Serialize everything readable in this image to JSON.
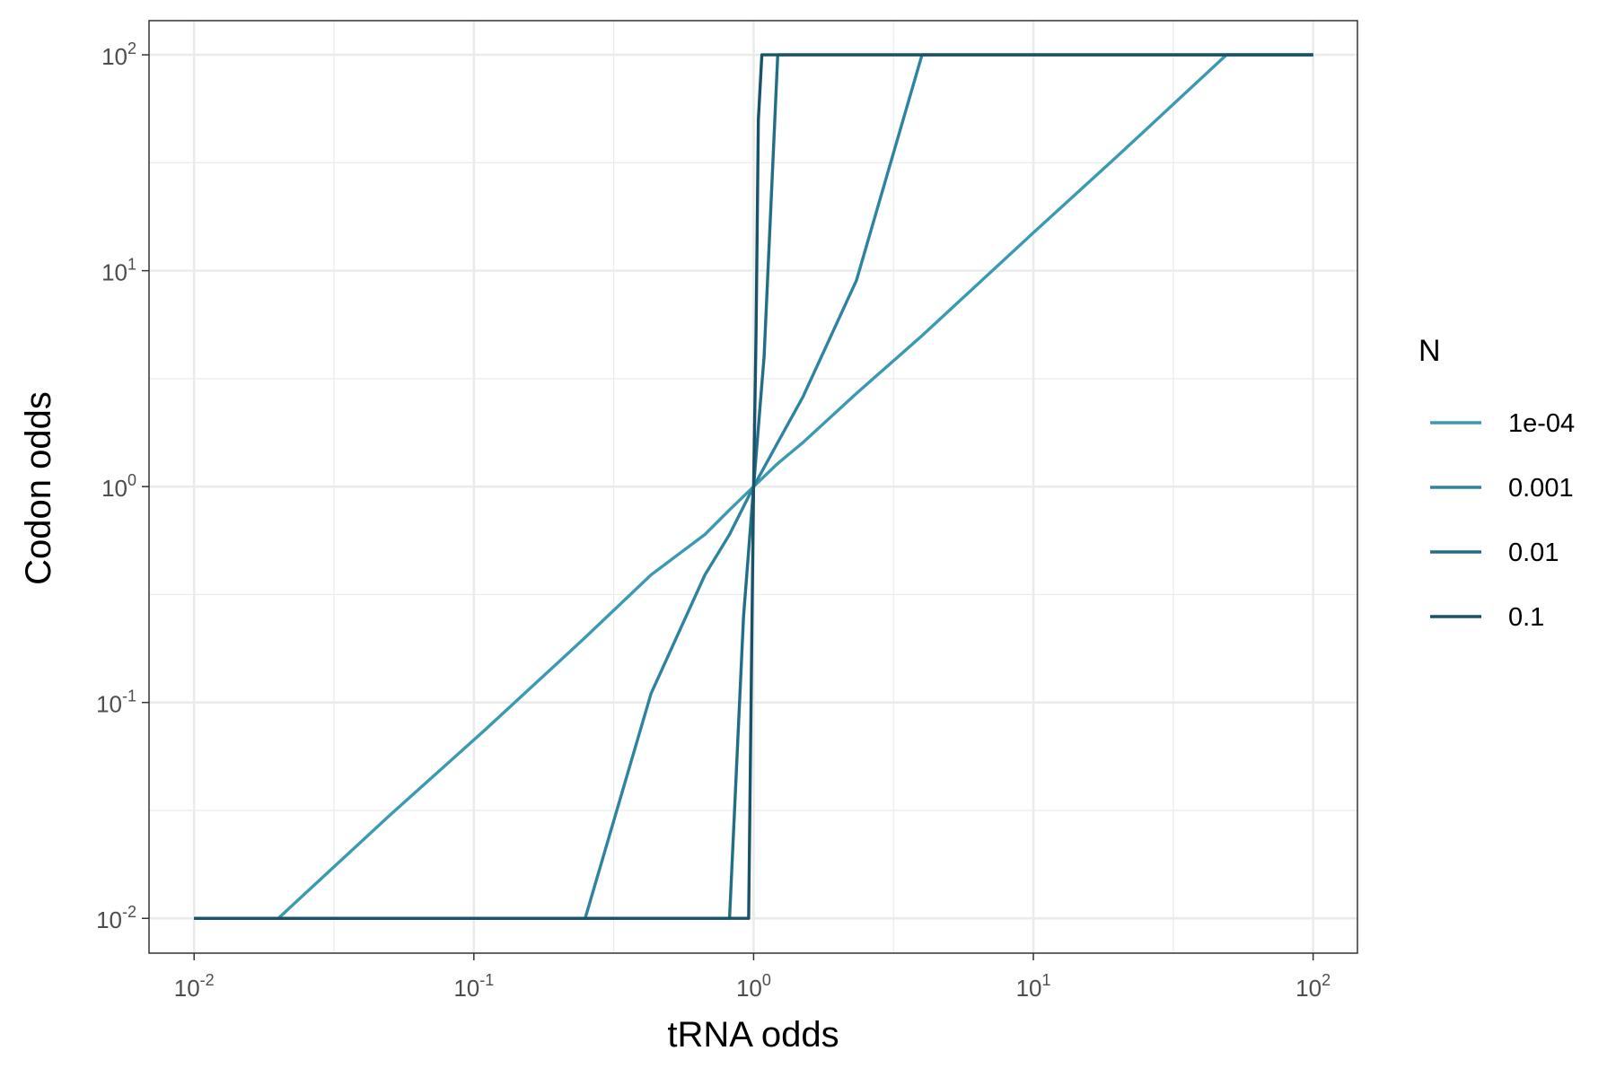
{
  "chart_data": {
    "type": "line",
    "xlabel": "tRNA odds",
    "ylabel": "Codon odds",
    "x_scale": "log10",
    "y_scale": "log10",
    "xlim": [
      0.0069,
      144
    ],
    "ylim": [
      0.0069,
      144
    ],
    "grid": true,
    "legend_position": "right",
    "legend_title": "N",
    "x_ticks": [
      {
        "base": "10",
        "exp": "-2",
        "value": 0.01
      },
      {
        "base": "10",
        "exp": "-1",
        "value": 0.1
      },
      {
        "base": "10",
        "exp": "0",
        "value": 1
      },
      {
        "base": "10",
        "exp": "1",
        "value": 10
      },
      {
        "base": "10",
        "exp": "2",
        "value": 100
      }
    ],
    "y_ticks": [
      {
        "base": "10",
        "exp": "-2",
        "value": 0.01
      },
      {
        "base": "10",
        "exp": "-1",
        "value": 0.1
      },
      {
        "base": "10",
        "exp": "0",
        "value": 1
      },
      {
        "base": "10",
        "exp": "1",
        "value": 10
      },
      {
        "base": "10",
        "exp": "2",
        "value": 100
      }
    ],
    "series": [
      {
        "name": "1e-04",
        "color": "#3b9ab2",
        "points": [
          [
            0.01,
            0.01
          ],
          [
            0.02,
            0.01
          ],
          [
            0.05,
            0.03
          ],
          [
            0.11,
            0.075
          ],
          [
            0.25,
            0.2
          ],
          [
            0.43,
            0.39
          ],
          [
            0.67,
            0.6
          ],
          [
            0.82,
            0.78
          ],
          [
            1.0,
            1.0
          ],
          [
            1.22,
            1.28
          ],
          [
            1.5,
            1.6
          ],
          [
            2.33,
            2.7
          ],
          [
            4.0,
            5.0
          ],
          [
            10,
            15
          ],
          [
            20,
            34
          ],
          [
            49,
            100
          ],
          [
            100,
            100
          ]
        ]
      },
      {
        "name": "0.001",
        "color": "#2e84a0",
        "points": [
          [
            0.01,
            0.01
          ],
          [
            0.25,
            0.01
          ],
          [
            0.43,
            0.11
          ],
          [
            0.67,
            0.39
          ],
          [
            0.82,
            0.6
          ],
          [
            1.0,
            1.0
          ],
          [
            1.22,
            1.6
          ],
          [
            1.5,
            2.6
          ],
          [
            2.33,
            9.0
          ],
          [
            4.0,
            100
          ],
          [
            100,
            100
          ]
        ]
      },
      {
        "name": "0.01",
        "color": "#236e87",
        "points": [
          [
            0.01,
            0.01
          ],
          [
            0.82,
            0.01
          ],
          [
            0.92,
            0.25
          ],
          [
            1.0,
            1.0
          ],
          [
            1.09,
            4.0
          ],
          [
            1.22,
            100
          ],
          [
            100,
            100
          ]
        ]
      },
      {
        "name": "0.1",
        "color": "#1a5269",
        "points": [
          [
            0.01,
            0.01
          ],
          [
            0.96,
            0.01
          ],
          [
            0.985,
            0.2
          ],
          [
            1.0,
            1.0
          ],
          [
            1.02,
            5.0
          ],
          [
            1.04,
            50
          ],
          [
            1.07,
            100
          ],
          [
            100,
            100
          ]
        ]
      }
    ]
  }
}
